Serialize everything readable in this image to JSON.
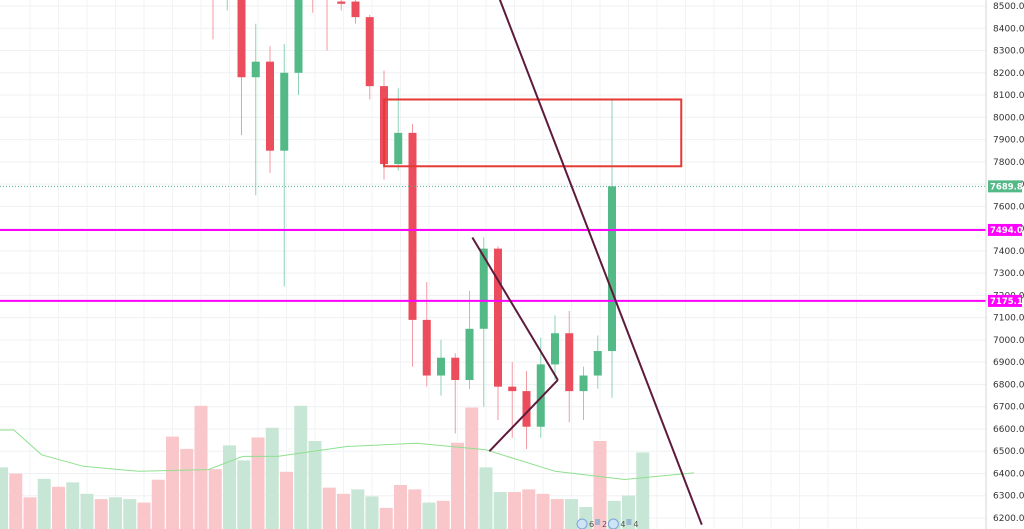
{
  "chart_data": {
    "type": "candlestick",
    "title": "",
    "xlabel": "",
    "ylabel": "",
    "ylim": [
      6180,
      8530
    ],
    "yticks": [
      6200,
      6300,
      6400,
      6500,
      6600,
      6700,
      6800,
      6900,
      7000,
      7100,
      7200,
      7300,
      7400,
      7500,
      7600,
      7700,
      7800,
      7900,
      8000,
      8100,
      8200,
      8300,
      8400,
      8500
    ],
    "tick_labels": [
      "6200.0",
      "6300.0",
      "6400.0",
      "6500.0",
      "6600.0",
      "6700.0",
      "6800.0",
      "6900.0",
      "7000.0",
      "7100.0",
      "7200.0",
      "7300.0",
      "7400.0",
      "7500.0",
      "7600.0",
      "7700.0",
      "7800.0",
      "7900.0",
      "8000.0",
      "8100.0",
      "8200.0",
      "8300.0",
      "8400.0",
      "8500.0"
    ],
    "grid": true,
    "colors": {
      "up": "#26a69a",
      "up_body": "#53b987",
      "down": "#eb4d5c",
      "level": "#ff00ff",
      "trend": "#5d1a3a",
      "zone": "#e53935",
      "ma": "#8fe08f",
      "last": "#53b987"
    },
    "candles": [
      {
        "open": 8540,
        "close": 8540,
        "high": 8560,
        "low": 8350,
        "dir": "down"
      },
      {
        "open": 8540,
        "close": 8540,
        "high": 8560,
        "low": 8480,
        "dir": "up"
      },
      {
        "open": 8560,
        "close": 8180,
        "high": 8600,
        "low": 7920,
        "dir": "down"
      },
      {
        "open": 8180,
        "close": 8250,
        "high": 8420,
        "low": 7650,
        "dir": "up"
      },
      {
        "open": 8250,
        "close": 7850,
        "high": 8320,
        "low": 7750,
        "dir": "down"
      },
      {
        "open": 7850,
        "close": 8200,
        "high": 8330,
        "low": 7240,
        "dir": "up"
      },
      {
        "open": 8200,
        "close": 8540,
        "high": 8560,
        "low": 8100,
        "dir": "up"
      },
      {
        "open": 8540,
        "close": 8540,
        "high": 8560,
        "low": 8470,
        "dir": "down"
      },
      {
        "open": 8540,
        "close": 8540,
        "high": 8560,
        "low": 8300,
        "dir": "down"
      },
      {
        "open": 8520,
        "close": 8510,
        "high": 8540,
        "low": 8480,
        "dir": "down"
      },
      {
        "open": 8520,
        "close": 8450,
        "high": 8560,
        "low": 8420,
        "dir": "down"
      },
      {
        "open": 8450,
        "close": 8140,
        "high": 8460,
        "low": 8080,
        "dir": "down"
      },
      {
        "open": 8140,
        "close": 7790,
        "high": 8210,
        "low": 7720,
        "dir": "down"
      },
      {
        "open": 7790,
        "close": 7930,
        "high": 8130,
        "low": 7760,
        "dir": "up"
      },
      {
        "open": 7930,
        "close": 7090,
        "high": 7970,
        "low": 6880,
        "dir": "down"
      },
      {
        "open": 7090,
        "close": 6840,
        "high": 7260,
        "low": 6790,
        "dir": "down"
      },
      {
        "open": 6840,
        "close": 6920,
        "high": 7000,
        "low": 6750,
        "dir": "up"
      },
      {
        "open": 6920,
        "close": 6820,
        "high": 6940,
        "low": 6580,
        "dir": "down"
      },
      {
        "open": 6820,
        "close": 7050,
        "high": 7220,
        "low": 6780,
        "dir": "up"
      },
      {
        "open": 7050,
        "close": 7410,
        "high": 7460,
        "low": 6700,
        "dir": "up"
      },
      {
        "open": 7410,
        "close": 6790,
        "high": 7420,
        "low": 6640,
        "dir": "down"
      },
      {
        "open": 6790,
        "close": 6770,
        "high": 6900,
        "low": 6560,
        "dir": "down"
      },
      {
        "open": 6770,
        "close": 6610,
        "high": 6860,
        "low": 6510,
        "dir": "down"
      },
      {
        "open": 6610,
        "close": 6890,
        "high": 7010,
        "low": 6560,
        "dir": "up"
      },
      {
        "open": 6890,
        "close": 7030,
        "high": 7110,
        "low": 6820,
        "dir": "up"
      },
      {
        "open": 7030,
        "close": 6770,
        "high": 7130,
        "low": 6630,
        "dir": "down"
      },
      {
        "open": 6770,
        "close": 6840,
        "high": 6880,
        "low": 6640,
        "dir": "up"
      },
      {
        "open": 6840,
        "close": 6950,
        "high": 7020,
        "low": 6780,
        "dir": "up"
      },
      {
        "open": 6950,
        "close": 7690,
        "high": 8080,
        "low": 6740,
        "dir": "up"
      }
    ],
    "volumes": [
      {
        "v": 70,
        "dir": "up"
      },
      {
        "v": 63,
        "dir": "down"
      },
      {
        "v": 36,
        "dir": "down"
      },
      {
        "v": 57,
        "dir": "up"
      },
      {
        "v": 48,
        "dir": "down"
      },
      {
        "v": 53,
        "dir": "up"
      },
      {
        "v": 40,
        "dir": "up"
      },
      {
        "v": 34,
        "dir": "down"
      },
      {
        "v": 36,
        "dir": "up"
      },
      {
        "v": 34,
        "dir": "up"
      },
      {
        "v": 30,
        "dir": "down"
      },
      {
        "v": 56,
        "dir": "down"
      },
      {
        "v": 105,
        "dir": "down"
      },
      {
        "v": 91,
        "dir": "down"
      },
      {
        "v": 140,
        "dir": "down"
      },
      {
        "v": 68,
        "dir": "down"
      },
      {
        "v": 95,
        "dir": "up"
      },
      {
        "v": 78,
        "dir": "up"
      },
      {
        "v": 104,
        "dir": "down"
      },
      {
        "v": 115,
        "dir": "up"
      },
      {
        "v": 65,
        "dir": "down"
      },
      {
        "v": 140,
        "dir": "up"
      },
      {
        "v": 100,
        "dir": "up"
      },
      {
        "v": 47,
        "dir": "down"
      },
      {
        "v": 40,
        "dir": "down"
      },
      {
        "v": 45,
        "dir": "up"
      },
      {
        "v": 37,
        "dir": "up"
      },
      {
        "v": 24,
        "dir": "down"
      },
      {
        "v": 50,
        "dir": "down"
      },
      {
        "v": 45,
        "dir": "down"
      },
      {
        "v": 30,
        "dir": "up"
      },
      {
        "v": 32,
        "dir": "down"
      },
      {
        "v": 98,
        "dir": "down"
      },
      {
        "v": 138,
        "dir": "down"
      },
      {
        "v": 70,
        "dir": "up"
      },
      {
        "v": 42,
        "dir": "up"
      },
      {
        "v": 42,
        "dir": "down"
      },
      {
        "v": 45,
        "dir": "down"
      },
      {
        "v": 40,
        "dir": "down"
      },
      {
        "v": 34,
        "dir": "down"
      },
      {
        "v": 34,
        "dir": "up"
      },
      {
        "v": 25,
        "dir": "up"
      },
      {
        "v": 100,
        "dir": "down"
      },
      {
        "v": 32,
        "dir": "up"
      },
      {
        "v": 38,
        "dir": "up"
      },
      {
        "v": 87,
        "dir": "up"
      }
    ],
    "volume_ma": [
      {
        "x": 0,
        "v": 0.6
      },
      {
        "x": 0.02,
        "v": 0.6
      },
      {
        "x": 0.06,
        "v": 0.45
      },
      {
        "x": 0.12,
        "v": 0.38
      },
      {
        "x": 0.2,
        "v": 0.35
      },
      {
        "x": 0.3,
        "v": 0.36
      },
      {
        "x": 0.35,
        "v": 0.44
      },
      {
        "x": 0.4,
        "v": 0.44
      },
      {
        "x": 0.5,
        "v": 0.5
      },
      {
        "x": 0.6,
        "v": 0.52
      },
      {
        "x": 0.7,
        "v": 0.48
      },
      {
        "x": 0.8,
        "v": 0.35
      },
      {
        "x": 0.9,
        "v": 0.3
      },
      {
        "x": 1,
        "v": 0.34
      }
    ],
    "horizontal_levels": [
      {
        "price": 7494.0,
        "label": "7494.0",
        "color": "#ff00ff"
      },
      {
        "price": 7175.1,
        "label": "7175.1",
        "color": "#ff00ff"
      }
    ],
    "last_price": {
      "price": 7689.8,
      "label": "7689.8",
      "color": "#53b987"
    },
    "zone": {
      "from_index": 12.5,
      "to_index": 33.0,
      "top": 8080,
      "bottom": 7780
    },
    "trendlines": [
      {
        "i1": 20,
        "p1": 8550,
        "i2": 34.3,
        "p2": 6170
      },
      {
        "i1": 18.2,
        "p1": 7460,
        "i2": 24.2,
        "p2": 6820
      },
      {
        "i1": 19.4,
        "p1": 6500,
        "i2": 24.2,
        "p2": 6820
      }
    ],
    "events": [
      {
        "index": 26.6,
        "text": "6",
        "text2": "2"
      },
      {
        "index": 28.8,
        "text": "4",
        "text2": "4"
      }
    ]
  }
}
